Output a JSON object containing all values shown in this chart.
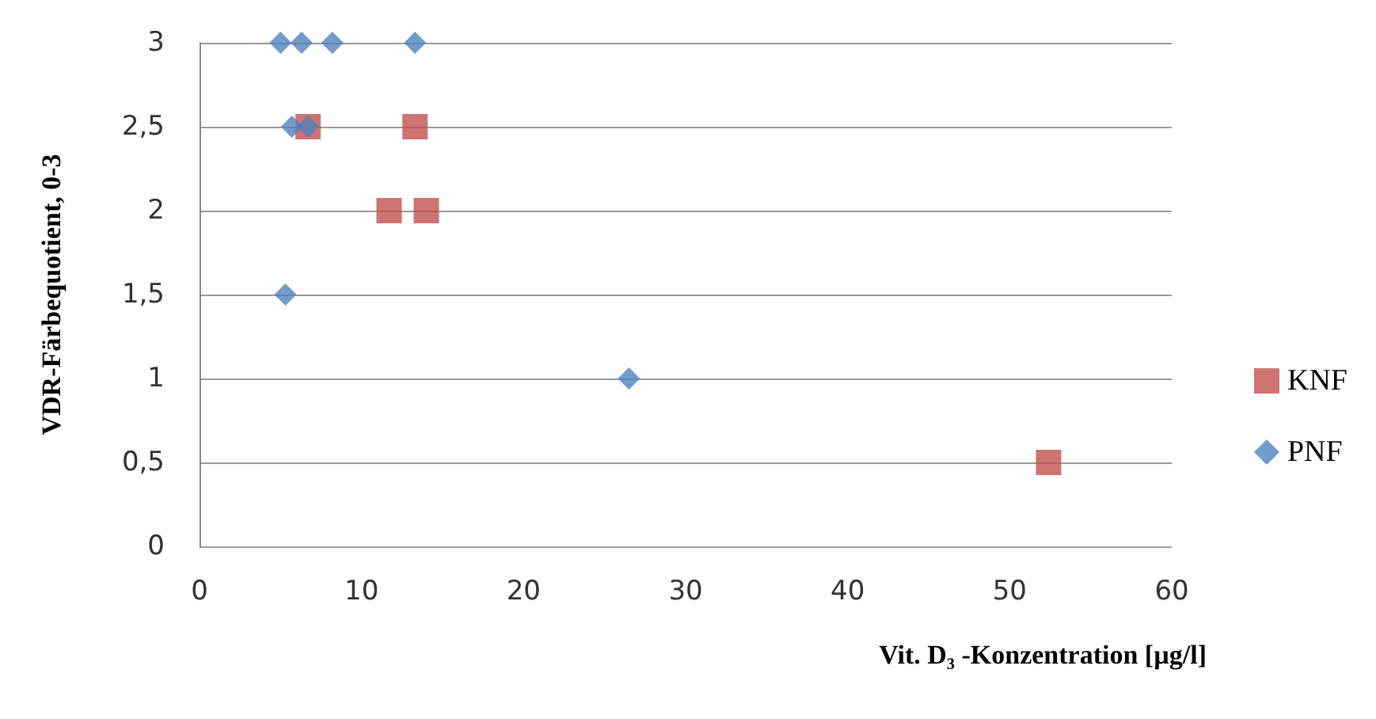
{
  "chart_data": {
    "type": "scatter",
    "xlabel": "Vit. D₃ -Konzentration [µg/l]",
    "ylabel": "VDR-Färbequotient, 0-3",
    "xlim": [
      0,
      60
    ],
    "xticks": [
      0,
      10,
      20,
      30,
      40,
      50,
      60
    ],
    "ylim": [
      0,
      3
    ],
    "yticks": [
      0,
      {
        "value": 0.5,
        "label": "0,5"
      },
      1,
      {
        "value": 1.5,
        "label": "1,5"
      },
      2,
      {
        "value": 2.5,
        "label": "2,5"
      },
      3
    ],
    "grid": "y",
    "legend": "right",
    "series": [
      {
        "name": "KNF",
        "color": "#c0504d",
        "marker": "square",
        "x": [
          6.7,
          13.3,
          11.7,
          14.0,
          52.4
        ],
        "values": [
          2.5,
          2.5,
          2,
          2,
          0.5
        ]
      },
      {
        "name": "PNF",
        "color": "#4f81bd",
        "marker": "diamond",
        "x": [
          5.0,
          6.3,
          8.2,
          13.3,
          5.7,
          6.7,
          5.3,
          26.5
        ],
        "values": [
          3,
          3,
          3,
          3,
          2.5,
          2.5,
          1.5,
          1
        ]
      }
    ]
  }
}
